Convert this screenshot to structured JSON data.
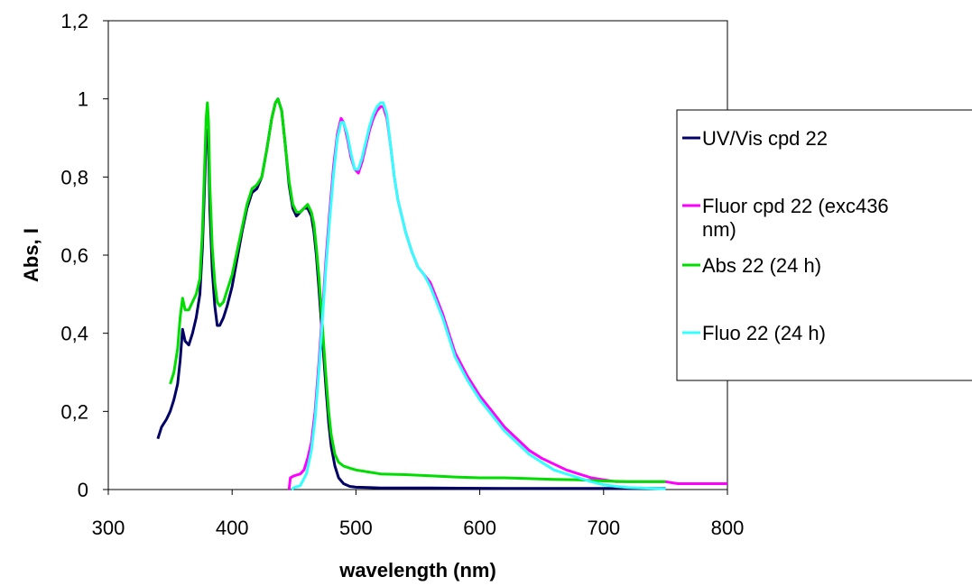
{
  "chart_data": {
    "type": "line",
    "title": "",
    "xlabel": "wavelength (nm)",
    "ylabel": "Abs, I",
    "xlim": [
      300,
      800
    ],
    "ylim": [
      0,
      1.2
    ],
    "xticks": [
      {
        "value": 300,
        "label": "300"
      },
      {
        "value": 400,
        "label": "400"
      },
      {
        "value": 500,
        "label": "500"
      },
      {
        "value": 600,
        "label": "600"
      },
      {
        "value": 700,
        "label": "700"
      },
      {
        "value": 800,
        "label": "800"
      }
    ],
    "yticks": [
      {
        "value": 0,
        "label": "0"
      },
      {
        "value": 0.2,
        "label": "0,2"
      },
      {
        "value": 0.4,
        "label": "0,4"
      },
      {
        "value": 0.6,
        "label": "0,6"
      },
      {
        "value": 0.8,
        "label": "0,8"
      },
      {
        "value": 1.0,
        "label": "1"
      },
      {
        "value": 1.2,
        "label": "1,2"
      }
    ],
    "grid": false,
    "legend_position": "right",
    "series": [
      {
        "name": "UV/Vis cpd 22",
        "color": "#000066",
        "x": [
          340,
          343,
          347,
          350,
          353,
          356,
          358,
          360,
          362,
          365,
          368,
          371,
          374,
          376,
          378,
          379,
          380,
          381,
          382,
          384,
          386,
          388,
          390,
          393,
          396,
          400,
          404,
          408,
          412,
          416,
          420,
          424,
          428,
          432,
          435,
          437,
          440,
          443,
          446,
          449,
          452,
          455,
          458,
          461,
          464,
          466,
          468,
          470,
          472,
          474,
          476,
          478,
          480,
          483,
          486,
          490,
          495,
          500,
          510,
          520,
          560,
          620,
          680,
          720,
          750
        ],
        "y": [
          0.13,
          0.16,
          0.18,
          0.2,
          0.23,
          0.27,
          0.33,
          0.41,
          0.38,
          0.37,
          0.4,
          0.44,
          0.5,
          0.62,
          0.8,
          0.9,
          0.92,
          0.88,
          0.72,
          0.56,
          0.47,
          0.42,
          0.42,
          0.44,
          0.47,
          0.52,
          0.59,
          0.66,
          0.72,
          0.76,
          0.77,
          0.8,
          0.87,
          0.95,
          0.99,
          1.0,
          0.97,
          0.88,
          0.78,
          0.72,
          0.7,
          0.71,
          0.72,
          0.72,
          0.7,
          0.66,
          0.6,
          0.52,
          0.43,
          0.34,
          0.25,
          0.17,
          0.11,
          0.06,
          0.03,
          0.015,
          0.008,
          0.006,
          0.005,
          0.004,
          0.004,
          0.003,
          0.003,
          0.003,
          0.003
        ]
      },
      {
        "name": "Fluor cpd 22 (exc436 nm)",
        "color": "#ff00ff",
        "x": [
          446,
          447,
          450,
          455,
          458,
          461,
          464,
          467,
          470,
          473,
          476,
          479,
          482,
          485,
          488,
          490,
          493,
          496,
          499,
          502,
          505,
          508,
          511,
          514,
          517,
          520,
          522,
          525,
          528,
          531,
          534,
          537,
          540,
          545,
          550,
          555,
          560,
          565,
          570,
          575,
          580,
          590,
          600,
          610,
          620,
          630,
          640,
          650,
          660,
          670,
          680,
          690,
          700,
          710,
          720,
          730,
          740,
          750,
          760,
          780,
          800
        ],
        "y": [
          0.0,
          0.03,
          0.035,
          0.04,
          0.05,
          0.08,
          0.12,
          0.2,
          0.32,
          0.46,
          0.6,
          0.72,
          0.83,
          0.91,
          0.95,
          0.94,
          0.9,
          0.85,
          0.82,
          0.81,
          0.84,
          0.88,
          0.92,
          0.95,
          0.97,
          0.98,
          0.98,
          0.95,
          0.88,
          0.8,
          0.74,
          0.7,
          0.66,
          0.61,
          0.57,
          0.55,
          0.53,
          0.49,
          0.45,
          0.4,
          0.35,
          0.29,
          0.24,
          0.2,
          0.16,
          0.13,
          0.1,
          0.08,
          0.065,
          0.05,
          0.04,
          0.03,
          0.025,
          0.02,
          0.02,
          0.02,
          0.02,
          0.02,
          0.015,
          0.015,
          0.015
        ]
      },
      {
        "name": "Abs 22 (24 h)",
        "color": "#00dd00",
        "x": [
          350,
          353,
          356,
          358,
          360,
          362,
          365,
          368,
          371,
          374,
          376,
          378,
          379,
          380,
          381,
          382,
          384,
          386,
          388,
          390,
          393,
          396,
          400,
          404,
          408,
          412,
          416,
          420,
          424,
          428,
          432,
          435,
          437,
          440,
          443,
          446,
          449,
          452,
          455,
          458,
          461,
          464,
          466,
          468,
          470,
          472,
          474,
          476,
          478,
          480,
          483,
          486,
          490,
          495,
          500,
          510,
          520,
          540,
          560,
          580,
          600,
          620,
          640,
          660,
          680,
          700,
          720,
          740,
          750
        ],
        "y": [
          0.27,
          0.3,
          0.36,
          0.44,
          0.49,
          0.46,
          0.46,
          0.48,
          0.5,
          0.54,
          0.66,
          0.85,
          0.95,
          0.99,
          0.94,
          0.78,
          0.62,
          0.53,
          0.48,
          0.47,
          0.48,
          0.51,
          0.55,
          0.61,
          0.67,
          0.73,
          0.77,
          0.78,
          0.8,
          0.87,
          0.95,
          0.99,
          1.0,
          0.97,
          0.88,
          0.79,
          0.73,
          0.71,
          0.71,
          0.72,
          0.73,
          0.71,
          0.68,
          0.62,
          0.55,
          0.46,
          0.37,
          0.28,
          0.2,
          0.14,
          0.09,
          0.07,
          0.06,
          0.055,
          0.05,
          0.045,
          0.04,
          0.038,
          0.035,
          0.032,
          0.03,
          0.03,
          0.028,
          0.026,
          0.025,
          0.022,
          0.02,
          0.02,
          0.02
        ]
      },
      {
        "name": "Fluo 22 (24 h)",
        "color": "#33ffff",
        "x": [
          448,
          450,
          455,
          460,
          464,
          467,
          470,
          473,
          476,
          479,
          482,
          485,
          488,
          490,
          493,
          496,
          499,
          502,
          505,
          508,
          511,
          514,
          517,
          520,
          522,
          525,
          528,
          531,
          534,
          537,
          540,
          545,
          550,
          555,
          560,
          565,
          570,
          575,
          580,
          590,
          600,
          610,
          620,
          630,
          640,
          650,
          660,
          670,
          680,
          690,
          700,
          710,
          720,
          730,
          740,
          750
        ],
        "y": [
          0.0,
          0.005,
          0.01,
          0.04,
          0.1,
          0.18,
          0.3,
          0.44,
          0.58,
          0.7,
          0.81,
          0.9,
          0.94,
          0.94,
          0.91,
          0.86,
          0.82,
          0.82,
          0.85,
          0.89,
          0.93,
          0.96,
          0.98,
          0.99,
          0.99,
          0.96,
          0.88,
          0.8,
          0.74,
          0.7,
          0.66,
          0.61,
          0.57,
          0.55,
          0.52,
          0.48,
          0.44,
          0.39,
          0.34,
          0.28,
          0.23,
          0.19,
          0.15,
          0.12,
          0.09,
          0.07,
          0.05,
          0.04,
          0.03,
          0.02,
          0.012,
          0.008,
          0.005,
          0.004,
          0.003,
          0.002
        ]
      }
    ]
  }
}
